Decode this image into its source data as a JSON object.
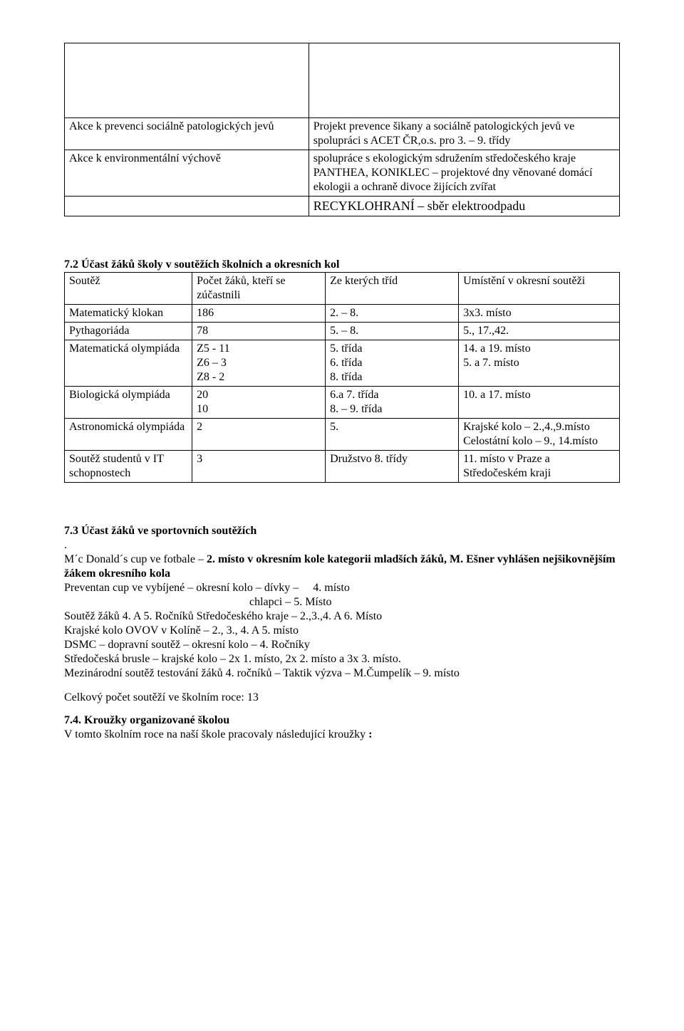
{
  "table1": {
    "rows": [
      {
        "left": "Akce k prevenci sociálně patologických jevů",
        "right": "Projekt prevence šikany a sociálně patologických jevů ve spolupráci s  ACET ČR,o.s.  pro 3. – 9. třídy"
      },
      {
        "left": "Akce k environmentální výchově",
        "right": "spolupráce s ekologickým sdružením středočeského kraje\nPANTHEA,  KONIKLEC – projektové dny věnované domácí ekologii a ochraně divoce žijících zvířat"
      },
      {
        "left": "",
        "right": "RECYKLOHRANÍ – sběr elektroodpadu"
      }
    ]
  },
  "section72": {
    "heading": "7.2 Účast žáků školy v soutěžích školních a okresních kol",
    "columns": [
      "Soutěž",
      "Počet žáků, kteří se zúčastnili",
      "Ze kterých tříd",
      "Umístění v okresní soutěži"
    ],
    "rows": [
      [
        "Matematický klokan",
        "186",
        "2. – 8.",
        "3x3. místo"
      ],
      [
        "Pythagoriáda",
        " 78",
        "5. – 8.",
        "5., 17.,42."
      ],
      [
        "Matematická olympiáda",
        "Z5 - 11\nZ6 – 3\nZ8 - 2",
        "5. třída\n6. třída\n8. třída",
        "14. a 19. místo\n5. a 7. místo"
      ],
      [
        "Biologická olympiáda",
        "20\n10",
        "6.a 7. třída\n8. – 9. třída",
        "10. a 17. místo"
      ],
      [
        "Astronomická olympiáda",
        "2",
        "5.",
        "Krajské kolo – 2.,4.,9.místo\nCelostátní kolo – 9., 14.místo"
      ],
      [
        "Soutěž studentů v IT schopnostech",
        "3",
        "Družstvo 8. třídy",
        "11. místo v Praze a Středočeském kraji"
      ]
    ],
    "col_widths": [
      "23%",
      "24%",
      "24%",
      "29%"
    ]
  },
  "section73": {
    "heading": "7.3 Účast žáků ve sportovních soutěžích",
    "line_dot": ".",
    "line1_pre": "M´c Donald´s cup ve fotbale – ",
    "line1_bold": "2. místo v okresním kole kategorii mladších žáků, M. Ešner vyhlášen nejšikovnějším žákem okresního kola",
    "lines": [
      "Preventan cup ve vybíjené – okresní kolo – dívky –     4. místo",
      "                                                                 chlapci – 5. Místo",
      "Soutěž žáků 4. A 5. Ročníků Středočeského kraje – 2.,3.,4. A 6. Místo",
      "Krajské kolo OVOV v Kolíně – 2., 3., 4. A 5. místo",
      "DSMC – dopravní soutěž – okresní kolo – 4. Ročníky",
      "Středočeská brusle – krajské kolo – 2x 1. místo, 2x 2. místo a 3x 3. místo.",
      "Mezinárodní soutěž testování žáků 4. ročníků – Taktik výzva – M.Čumpelík – 9. místo"
    ],
    "total": "Celkový počet soutěží ve školním roce: 13"
  },
  "section74": {
    "heading": "7.4. Kroužky organizované školou",
    "line_pre": "V tomto školním roce na naší škole pracovaly následující kroužky ",
    "line_bold": ":"
  }
}
